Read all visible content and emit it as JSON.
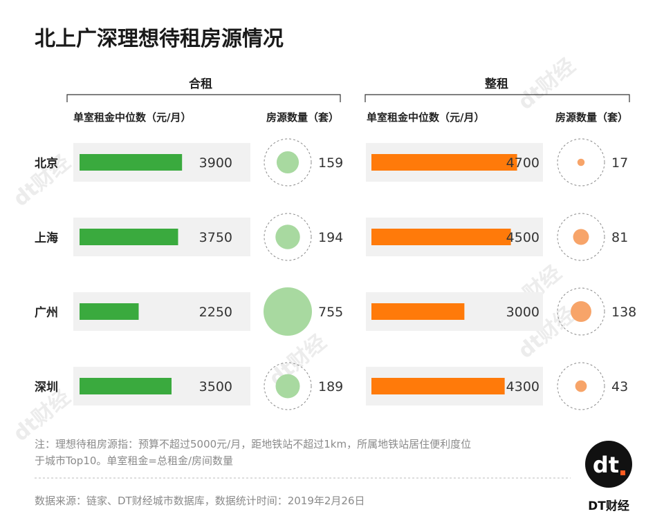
{
  "title": "北上广深理想待租房源情况",
  "groups": [
    {
      "title": "合租",
      "rent_header": "单室租金中位数（元/月）",
      "count_header": "房源数量（套）",
      "bar_color": "#3aaa3e",
      "bubble_color": "#a8d9a0"
    },
    {
      "title": "整租",
      "rent_header": "单室租金中位数（元/月）",
      "count_header": "房源数量（套）",
      "bar_color": "#ff7a0a",
      "bubble_color": "#f7a469"
    }
  ],
  "chart_data": {
    "type": "bar",
    "categories": [
      "北京",
      "上海",
      "广州",
      "深圳"
    ],
    "series": [
      {
        "group": "合租",
        "rent": [
          3900,
          3750,
          2250,
          3500
        ],
        "count": [
          159,
          194,
          755,
          189
        ]
      },
      {
        "group": "整租",
        "rent": [
          4700,
          4500,
          3000,
          4300
        ],
        "count": [
          17,
          81,
          138,
          43
        ]
      }
    ],
    "rent_max": 5000,
    "count_max": 755
  },
  "note": {
    "line1": "注：理想待租房源指：预算不超过5000元/月，距地铁站不超过1km，所属地铁站居住便利度位",
    "line2": "于城市Top10。单室租金=总租金/房间数量"
  },
  "source": "数据来源：链家、DT财经城市数据库，数据统计时间：2019年2月26日",
  "logo": {
    "mark": "dt",
    "name": "DT财经"
  },
  "watermark": "dt财经"
}
